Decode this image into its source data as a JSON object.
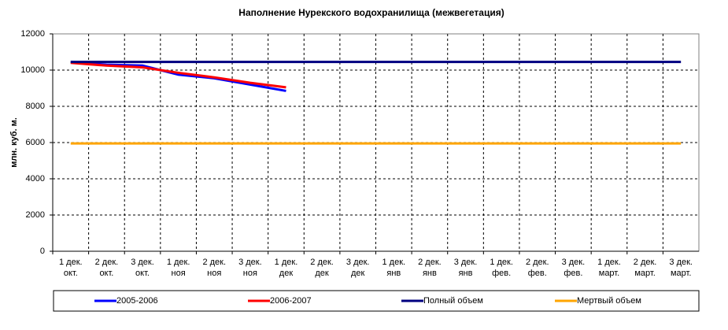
{
  "chart_data": {
    "type": "line",
    "title": "Наполнение Нурекского водохранилища (межвегетация)",
    "y_label": "млн. куб. м.",
    "categories": [
      "1 дек.\nокт.",
      "2 дек.\nокт.",
      "3 дек.\nокт.",
      "1 дек.\nноя",
      "2 дек.\nноя",
      "3 дек.\nноя",
      "1 дек.\nдек",
      "2 дек.\nдек",
      "3 дек.\nдек",
      "1 дек.\nянв",
      "2 дек.\nянв",
      "3 дек.\nянв",
      "1 дек.\nфев.",
      "2 дек.\nфев.",
      "3 дек.\nфев.",
      "1 дек.\nмарт.",
      "2 дек.\nмарт.",
      "3 дек.\nмарт."
    ],
    "series": [
      {
        "name": "2005-2006",
        "color": "#0000ff",
        "values": [
          10450,
          10300,
          10250,
          9750,
          9550,
          9200,
          8850,
          null,
          null,
          null,
          null,
          null,
          null,
          null,
          null,
          null,
          null,
          null
        ]
      },
      {
        "name": "2006-2007",
        "color": "#ff0000",
        "values": [
          10400,
          10250,
          10150,
          9850,
          9600,
          9300,
          9050,
          null,
          null,
          null,
          null,
          null,
          null,
          null,
          null,
          null,
          null,
          null
        ]
      },
      {
        "name": "Полный объем",
        "color": "#000080",
        "values": [
          10450,
          10450,
          10450,
          10450,
          10450,
          10450,
          10450,
          10450,
          10450,
          10450,
          10450,
          10450,
          10450,
          10450,
          10450,
          10450,
          10450,
          10450
        ]
      },
      {
        "name": "Мертвый объем",
        "color": "#ffa500",
        "values": [
          5950,
          5950,
          5950,
          5950,
          5950,
          5950,
          5950,
          5950,
          5950,
          5950,
          5950,
          5950,
          5950,
          5950,
          5950,
          5950,
          5950,
          5950
        ]
      }
    ],
    "ylim": [
      0,
      12000
    ],
    "yticks": [
      0,
      2000,
      4000,
      6000,
      8000,
      10000,
      12000
    ],
    "grid": true,
    "legend": "bottom"
  }
}
